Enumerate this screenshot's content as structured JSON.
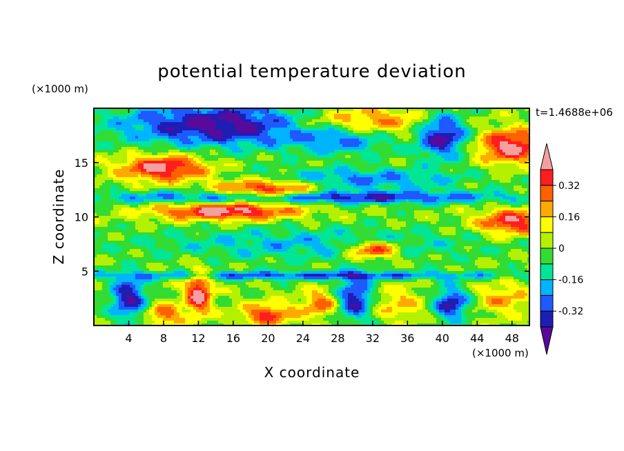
{
  "chart_data": {
    "type": "heatmap",
    "title": "potential temperature deviation",
    "xlabel": "X coordinate",
    "ylabel": "Z coordinate",
    "x_unit": "(×1000 m)",
    "y_unit": "(×1000 m)",
    "time_label": "t=1.4688e+06",
    "xlim": [
      0,
      50
    ],
    "ylim": [
      0,
      20
    ],
    "x_ticks": [
      4,
      8,
      12,
      16,
      20,
      24,
      28,
      32,
      36,
      40,
      44,
      48
    ],
    "y_ticks": [
      5,
      10,
      15
    ],
    "colorbar": {
      "levels": [
        -0.4,
        -0.32,
        -0.24,
        -0.16,
        -0.08,
        0,
        0.08,
        0.16,
        0.24,
        0.32,
        0.4
      ],
      "colors": [
        "#5a0a9b",
        "#1e1eb4",
        "#1e5aff",
        "#00b4ff",
        "#00e696",
        "#32dc32",
        "#b4f000",
        "#ffff00",
        "#ffaa00",
        "#ff6000",
        "#ff1e1e",
        "#f5a0a0"
      ],
      "tick_labels": [
        "0.32",
        "0.16",
        "0",
        "-0.16",
        "-0.32"
      ],
      "tick_values": [
        0.32,
        0.16,
        0,
        -0.16,
        -0.32
      ],
      "extend": "both"
    },
    "fields": [
      {
        "z": 18.5,
        "x": 15,
        "v": -0.45,
        "sx": 12,
        "sz": 2
      },
      {
        "z": 17.5,
        "x": 40,
        "v": -0.45,
        "sx": 3,
        "sz": 2
      },
      {
        "z": 17.5,
        "x": 29,
        "v": -0.38,
        "sx": 6,
        "sz": 1.5
      },
      {
        "z": 18.5,
        "x": 30,
        "v": 0.45,
        "sx": 8,
        "sz": 1.5
      },
      {
        "z": 16.5,
        "x": 48,
        "v": 0.45,
        "sx": 4,
        "sz": 1.5
      },
      {
        "z": 14.5,
        "x": 8,
        "v": 0.45,
        "sx": 5,
        "sz": 1.2
      },
      {
        "z": 12.5,
        "x": 20,
        "v": 0.45,
        "sx": 6,
        "sz": 1
      },
      {
        "z": 11.8,
        "x": 25,
        "v": -0.38,
        "sx": 25,
        "sz": 0.6
      },
      {
        "z": 10.5,
        "x": 15,
        "v": 0.45,
        "sx": 8,
        "sz": 0.8
      },
      {
        "z": 9.5,
        "x": 48,
        "v": 0.4,
        "sx": 4,
        "sz": 1.2
      },
      {
        "z": 7.0,
        "x": 32,
        "v": 0.45,
        "sx": 3,
        "sz": 0.8
      },
      {
        "z": 3.0,
        "x": 12,
        "v": 0.45,
        "sx": 1.5,
        "sz": 2
      },
      {
        "z": 1.0,
        "x": 20,
        "v": 0.35,
        "sx": 3,
        "sz": 1
      },
      {
        "z": 1.0,
        "x": 8,
        "v": 0.3,
        "sx": 2,
        "sz": 1
      },
      {
        "z": 2.0,
        "x": 26,
        "v": 0.28,
        "sx": 2,
        "sz": 1.2
      },
      {
        "z": 2.0,
        "x": 35,
        "v": 0.18,
        "sx": 3,
        "sz": 1.5
      },
      {
        "z": 2.5,
        "x": 47,
        "v": 0.2,
        "sx": 3,
        "sz": 1.5
      },
      {
        "z": 2.5,
        "x": 4,
        "v": -0.4,
        "sx": 2,
        "sz": 2
      },
      {
        "z": 2.5,
        "x": 30,
        "v": -0.4,
        "sx": 2,
        "sz": 2
      },
      {
        "z": 2.0,
        "x": 41,
        "v": -0.4,
        "sx": 2,
        "sz": 1.5
      },
      {
        "z": 4.6,
        "x": 25,
        "v": -0.3,
        "sx": 25,
        "sz": 0.4
      },
      {
        "z": 7.5,
        "x": 25,
        "v": -0.18,
        "sx": 20,
        "sz": 1.5
      },
      {
        "z": 13.5,
        "x": 30,
        "v": -0.25,
        "sx": 12,
        "sz": 1
      }
    ]
  }
}
